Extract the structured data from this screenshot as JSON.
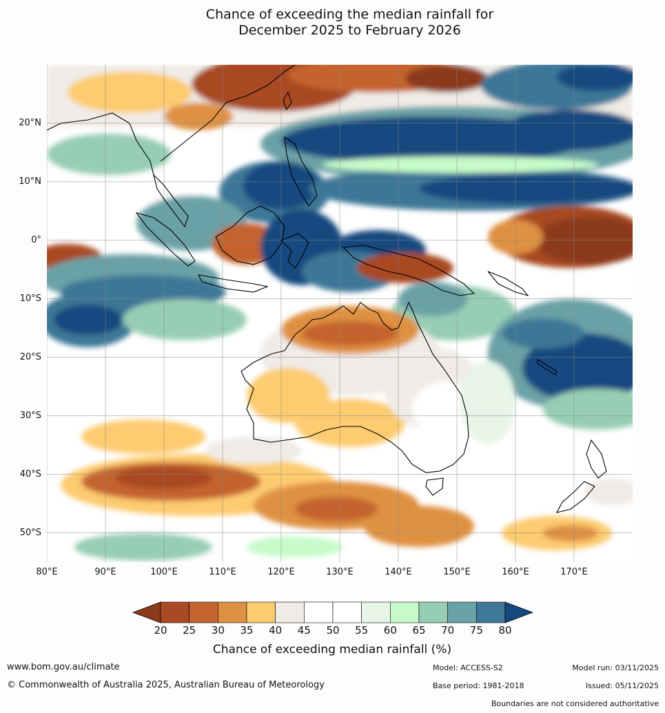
{
  "title_line1": "Chance of exceeding the median rainfall for",
  "title_line2": "December 2025 to February 2026",
  "map": {
    "lat_ticks": [
      "20°N",
      "10°N",
      "0°",
      "10°S",
      "20°S",
      "30°S",
      "40°S",
      "50°S"
    ],
    "lon_ticks": [
      "80°E",
      "90°E",
      "100°E",
      "110°E",
      "120°E",
      "130°E",
      "140°E",
      "150°E",
      "160°E",
      "170°E"
    ],
    "lat_values": [
      20,
      10,
      0,
      -10,
      -20,
      -30,
      -40,
      -50
    ],
    "lon_values": [
      80,
      90,
      100,
      110,
      120,
      130,
      140,
      150,
      160,
      170
    ],
    "lon_range": [
      80,
      180
    ],
    "lat_range": [
      -55,
      30
    ],
    "regions": [
      {
        "name": "northern-hemisphere-tropics-wet",
        "level": "75-80",
        "lon": [
          125,
          180
        ],
        "lat": [
          8,
          20
        ]
      },
      {
        "name": "equatorial-pacific-dry",
        "level": "20-25",
        "lon": [
          155,
          180
        ],
        "lat": [
          -8,
          4
        ]
      },
      {
        "name": "australia-interior-dry",
        "level": "30-35",
        "lon": [
          115,
          145
        ],
        "lat": [
          -35,
          -15
        ]
      },
      {
        "name": "southern-ocean-dry",
        "level": "25-30",
        "lon": [
          80,
          145
        ],
        "lat": [
          -50,
          -40
        ]
      },
      {
        "name": "indian-ocean-wet",
        "level": "70-75",
        "lon": [
          80,
          115
        ],
        "lat": [
          -18,
          -6
        ]
      },
      {
        "name": "coral-sea-wet",
        "level": "75-80",
        "lon": [
          160,
          180
        ],
        "lat": [
          -28,
          -15
        ]
      }
    ]
  },
  "colorbar": {
    "ticks": [
      "20",
      "25",
      "30",
      "35",
      "40",
      "45",
      "50",
      "55",
      "60",
      "65",
      "70",
      "75",
      "80"
    ],
    "colors": [
      "#8b3a1a",
      "#a84a24",
      "#c4642f",
      "#df9143",
      "#fdcb70",
      "#efebe6",
      "#ffffff",
      "#ffffff",
      "#e6f5e8",
      "#c6fbc9",
      "#97cdb4",
      "#6aa1a6",
      "#3e7797",
      "#12497f"
    ],
    "label": "Chance of exceeding median rainfall (%)"
  },
  "footer": {
    "url": "www.bom.gov.au/climate",
    "copyright": "© Commonwealth of Australia 2025, Australian Bureau of Meteorology",
    "model": "Model: ACCESS-S2",
    "base_period": "Base period: 1981-2018",
    "model_run": "Model run: 03/11/2025",
    "issued": "Issued: 05/11/2025",
    "boundaries": "Boundaries are not considered authoritative"
  }
}
